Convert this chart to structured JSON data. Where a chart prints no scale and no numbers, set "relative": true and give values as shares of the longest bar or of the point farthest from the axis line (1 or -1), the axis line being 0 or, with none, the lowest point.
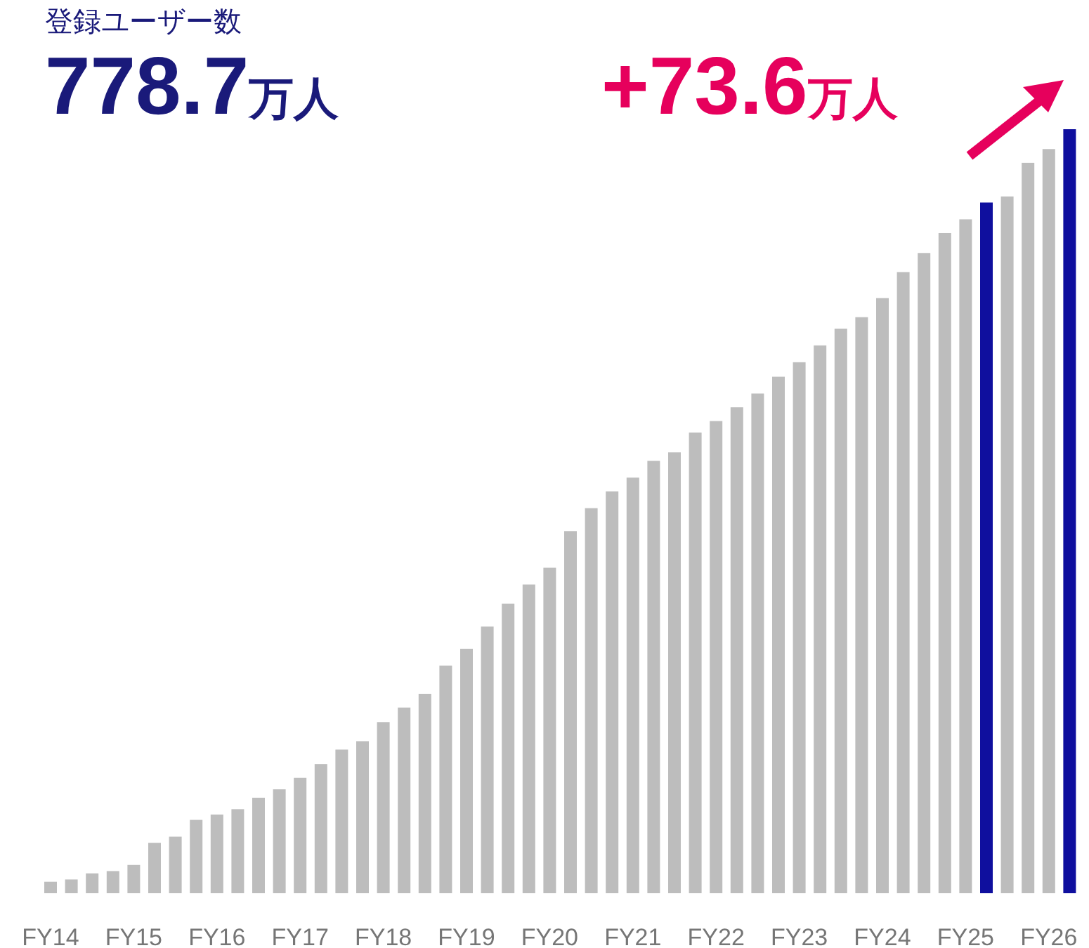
{
  "chart_data": {
    "type": "bar",
    "relative": true,
    "title": "登録ユーザー数",
    "annotations": [
      "778.7万人",
      "+73.6万人"
    ],
    "categories": [
      "FY14",
      null,
      null,
      null,
      "FY15",
      null,
      null,
      null,
      "FY16",
      null,
      null,
      null,
      "FY17",
      null,
      null,
      null,
      "FY18",
      null,
      null,
      null,
      "FY19",
      null,
      null,
      null,
      "FY20",
      null,
      null,
      null,
      "FY21",
      null,
      null,
      null,
      "FY22",
      null,
      null,
      null,
      "FY23",
      null,
      null,
      null,
      "FY24",
      null,
      null,
      null,
      "FY25",
      null,
      null,
      null,
      "FY26",
      null
    ],
    "values": [
      0.015,
      0.018,
      0.026,
      0.029,
      0.037,
      0.066,
      0.074,
      0.096,
      0.103,
      0.11,
      0.125,
      0.136,
      0.151,
      0.169,
      0.188,
      0.199,
      0.224,
      0.243,
      0.261,
      0.298,
      0.32,
      0.349,
      0.379,
      0.404,
      0.426,
      0.474,
      0.504,
      0.526,
      0.544,
      0.566,
      0.577,
      0.603,
      0.618,
      0.636,
      0.654,
      0.676,
      0.695,
      0.717,
      0.739,
      0.754,
      0.779,
      0.813,
      0.838,
      0.864,
      0.882,
      0.904,
      0.912,
      0.956,
      0.974,
      1
    ],
    "colors": [
      "#bdbdbd",
      "#bdbdbd",
      "#bdbdbd",
      "#bdbdbd",
      "#bdbdbd",
      "#bdbdbd",
      "#bdbdbd",
      "#bdbdbd",
      "#bdbdbd",
      "#bdbdbd",
      "#bdbdbd",
      "#bdbdbd",
      "#bdbdbd",
      "#bdbdbd",
      "#bdbdbd",
      "#bdbdbd",
      "#bdbdbd",
      "#bdbdbd",
      "#bdbdbd",
      "#bdbdbd",
      "#bdbdbd",
      "#bdbdbd",
      "#bdbdbd",
      "#bdbdbd",
      "#bdbdbd",
      "#bdbdbd",
      "#bdbdbd",
      "#bdbdbd",
      "#bdbdbd",
      "#bdbdbd",
      "#bdbdbd",
      "#bdbdbd",
      "#bdbdbd",
      "#bdbdbd",
      "#bdbdbd",
      "#bdbdbd",
      "#bdbdbd",
      "#bdbdbd",
      "#bdbdbd",
      "#bdbdbd",
      "#bdbdbd",
      "#bdbdbd",
      "#bdbdbd",
      "#bdbdbd",
      "#bdbdbd",
      "#0f0f9e",
      "#bdbdbd",
      "#bdbdbd",
      "#bdbdbd",
      "#0f0f9e"
    ]
  }
}
